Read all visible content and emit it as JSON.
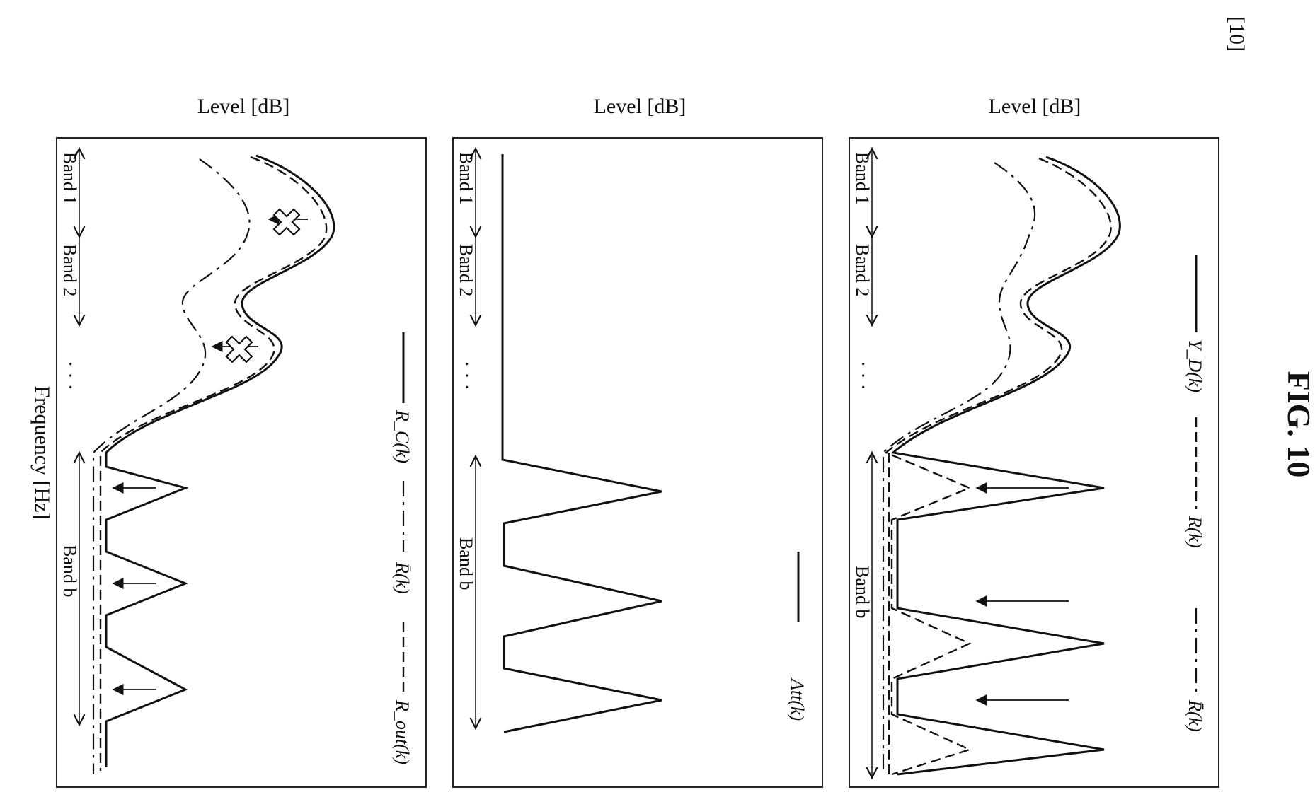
{
  "page_number": "[10]",
  "figure_title": "FIG. 10",
  "x_axis_label": "Frequency [Hz]",
  "panels": [
    {
      "y_label": "Level [dB]",
      "legend": [
        {
          "text": "Y_D(k)",
          "style": "solid"
        },
        {
          "text": "R(k)",
          "style": "dashed"
        },
        {
          "text": "R̄(k)",
          "style": "dashdot"
        }
      ],
      "bands": [
        "Band 1",
        "Band 2",
        "Band b"
      ],
      "ellipsis": "· · ·"
    },
    {
      "y_label": "Level [dB]",
      "legend": [
        {
          "text": "Att(k)",
          "style": "solid"
        }
      ],
      "bands": [
        "Band 1",
        "Band 2",
        "Band b"
      ],
      "ellipsis": "· · ·"
    },
    {
      "y_label": "Level [dB]",
      "legend": [
        {
          "text": "R_C(k)",
          "style": "solid"
        },
        {
          "text": "R̄(k)",
          "style": "dashdot"
        },
        {
          "text": "R_out(k)",
          "style": "dashed"
        }
      ],
      "bands": [
        "Band 1",
        "Band 2",
        "Band b"
      ],
      "ellipsis": "· · ·"
    }
  ]
}
